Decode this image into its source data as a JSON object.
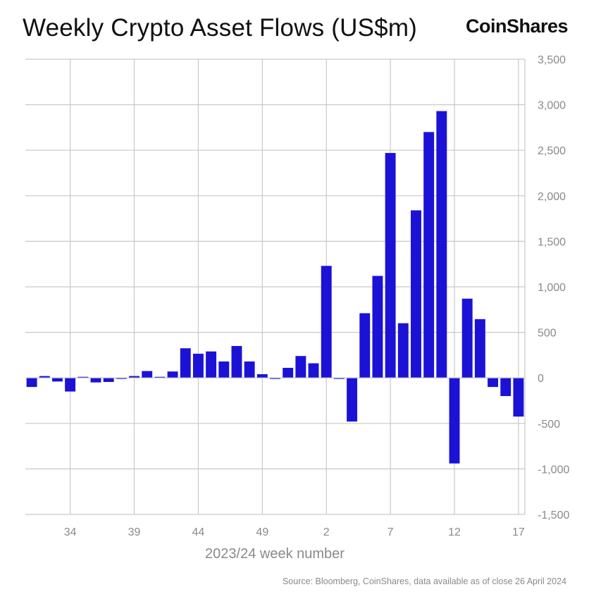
{
  "title": "Weekly Crypto Asset Flows (US$m)",
  "brand": "CoinShares",
  "source": "Source: Bloomberg, CoinShares, data available as of close 26 April 2024",
  "colors": {
    "bar": "#1b12d6",
    "grid": "#c9c9c9",
    "tick": "#8a8a8a"
  },
  "chart_data": {
    "type": "bar",
    "xlabel": "2023/24 week number",
    "ylabel": "",
    "ylim": [
      -1500,
      3500
    ],
    "yticks": [
      3500,
      3000,
      2500,
      2000,
      1500,
      1000,
      500,
      0,
      -500,
      -1000,
      -1500
    ],
    "ytick_labels": [
      "3,500",
      "3,000",
      "2,500",
      "2,000",
      "1,500",
      "1,000",
      "500",
      "0",
      "-500",
      "-1,000",
      "-1,500"
    ],
    "xtick_labels": [
      "34",
      "39",
      "44",
      "49",
      "2",
      "7",
      "12",
      "17"
    ],
    "xtick_positions": [
      3,
      8,
      13,
      18,
      23,
      28,
      33,
      38
    ],
    "grid": true,
    "categories": [
      31,
      32,
      33,
      34,
      35,
      36,
      37,
      38,
      39,
      40,
      41,
      42,
      43,
      44,
      45,
      46,
      47,
      48,
      49,
      50,
      51,
      52,
      1,
      2,
      3,
      4,
      5,
      6,
      7,
      8,
      9,
      10,
      11,
      12,
      13,
      14,
      15,
      16,
      17
    ],
    "values": [
      -100,
      20,
      -40,
      -150,
      0,
      -50,
      -45,
      -10,
      20,
      75,
      10,
      70,
      325,
      265,
      290,
      180,
      350,
      180,
      40,
      -10,
      110,
      240,
      160,
      1230,
      -10,
      -480,
      710,
      1120,
      2470,
      600,
      1840,
      2700,
      2930,
      -940,
      870,
      645,
      -100,
      -200,
      -425
    ]
  }
}
